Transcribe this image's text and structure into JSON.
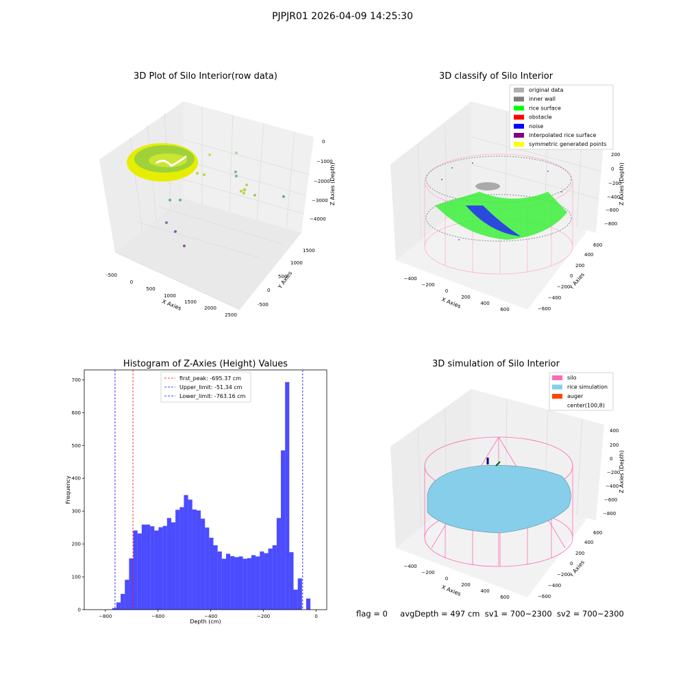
{
  "figure": {
    "title": "PJPJR01 2026-04-09 14:25:30",
    "footer": {
      "flag": "flag = 0",
      "avg_depth": "avgDepth = 497 cm",
      "sv1": "sv1 = 700~2300",
      "sv2": "sv2 = 700~2300"
    }
  },
  "panels": {
    "raw": {
      "title": "3D Plot of Silo Interior(row data)",
      "xlabel": "X Axies",
      "ylabel": "Y Axies",
      "zlabel": "Z Axies (Depth)",
      "xticks": [
        "-500",
        "0",
        "500",
        "1000",
        "1500",
        "2000",
        "2500"
      ],
      "yticks": [
        "-500",
        "0",
        "500",
        "1000",
        "1500"
      ],
      "zticks": [
        "0",
        "−1000",
        "−2000",
        "−3000",
        "−4000"
      ]
    },
    "classify": {
      "title": "3D classify of Silo Interior",
      "xlabel": "X Axies",
      "ylabel": "Y Axies",
      "zlabel": "Z Axies (Depth)",
      "xticks": [
        "−400",
        "−200",
        "0",
        "200",
        "400",
        "600"
      ],
      "yticks": [
        "−600",
        "−400",
        "−200",
        "0",
        "200",
        "400",
        "600"
      ],
      "zticks": [
        "200",
        "0",
        "−200",
        "−400",
        "−600",
        "−800"
      ],
      "legend": [
        {
          "label": "original data",
          "color": "#b0b0b0"
        },
        {
          "label": "inner wall",
          "color": "#808080"
        },
        {
          "label": "rice surface",
          "color": "#00ff00"
        },
        {
          "label": "obstacle",
          "color": "#ff0000"
        },
        {
          "label": "noise",
          "color": "#0000ff"
        },
        {
          "label": "interpolated rice surface",
          "color": "#800080"
        },
        {
          "label": "symmetric generated points",
          "color": "#ffff00"
        }
      ]
    },
    "simulation": {
      "title": "3D simulation of Silo Interior",
      "xlabel": "X Axies",
      "ylabel": "Y Axies",
      "zlabel": "Z Axies (Depth)",
      "xticks": [
        "−400",
        "−200",
        "0",
        "200",
        "400",
        "600"
      ],
      "yticks": [
        "−600",
        "−400",
        "−200",
        "0",
        "200",
        "400",
        "600"
      ],
      "zticks": [
        "400",
        "200",
        "0",
        "−200",
        "−400",
        "−600",
        "−800"
      ],
      "legend": [
        {
          "label": "silo",
          "color": "#ff69b4"
        },
        {
          "label": "rice simulation",
          "color": "#87ceeb"
        },
        {
          "label": "auger",
          "color": "#ff4500"
        },
        {
          "label": "center(100,8)",
          "color": ""
        }
      ]
    }
  },
  "chart_data": [
    {
      "type": "histogram",
      "title": "Histogram of Z-Axies (Height) Values",
      "xlabel": "Depth (cm)",
      "ylabel": "Frequency",
      "xlim": [
        -880,
        40
      ],
      "ylim": [
        0,
        730
      ],
      "xticks": [
        -800,
        -600,
        -400,
        -200,
        0
      ],
      "xtick_labels": [
        "−800",
        "−600",
        "−400",
        "−200",
        "0"
      ],
      "yticks": [
        0,
        100,
        200,
        300,
        400,
        500,
        600,
        700
      ],
      "bar_color": "#0000ff",
      "bar_start": -790,
      "bin_width": 16,
      "values": [
        1,
        5,
        22,
        48,
        91,
        156,
        241,
        232,
        259,
        259,
        254,
        241,
        251,
        255,
        279,
        266,
        304,
        312,
        349,
        335,
        305,
        302,
        277,
        250,
        219,
        196,
        177,
        155,
        170,
        163,
        160,
        162,
        155,
        157,
        166,
        162,
        177,
        172,
        186,
        196,
        279,
        485,
        693,
        175,
        61,
        95,
        0,
        34
      ],
      "reference_lines": [
        {
          "label": "first_peak: -695.37 cm",
          "x": -695.37,
          "color": "#ff0000"
        },
        {
          "label": "Upper_limit: -51.34 cm",
          "x": -51.34,
          "color": "#0000ff"
        },
        {
          "label": "Lower_limit: -763.16 cm",
          "x": -763.16,
          "color": "#0000ff"
        }
      ],
      "legend_position": "top-center"
    }
  ]
}
